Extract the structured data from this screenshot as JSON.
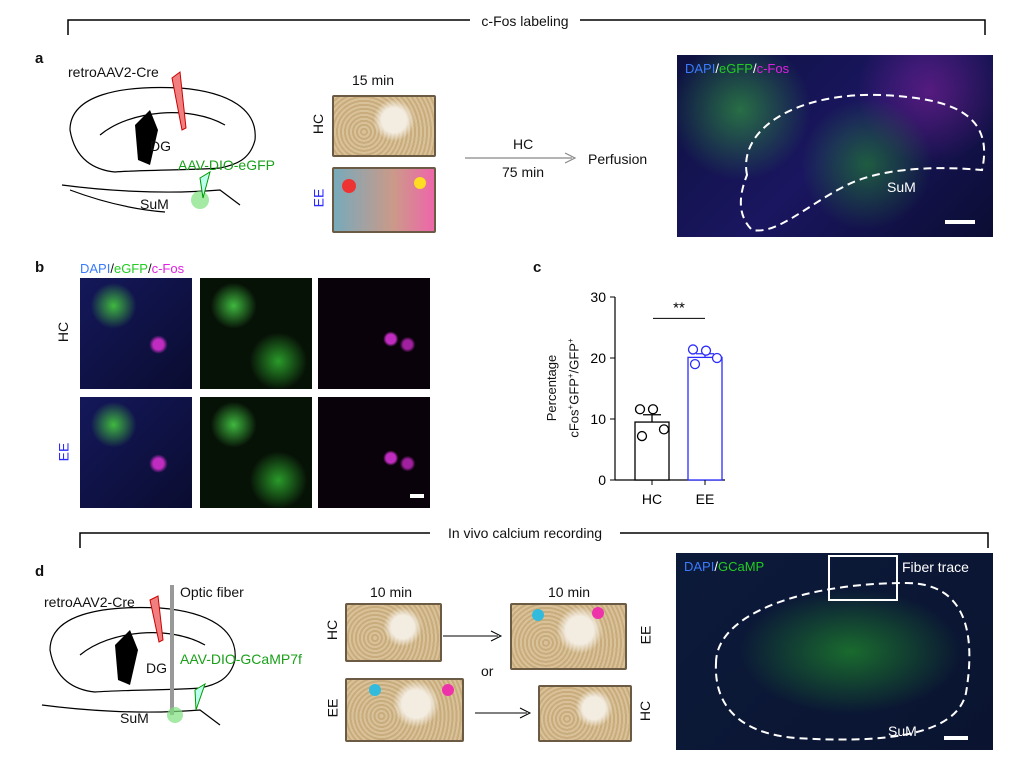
{
  "top_section": {
    "title": "c-Fos labeling"
  },
  "panel_a": {
    "label": "a",
    "virus1": "retroAAV2-Cre",
    "region_dg": "DG",
    "virus2": "AAV-DIO-eGFP",
    "region_sum": "SuM",
    "time": "15 min",
    "cage_hc": "HC",
    "cage_ee": "EE",
    "arrow_top": "HC",
    "arrow_bottom": "75 min",
    "endpoint": "Perfusion",
    "stain": {
      "dapi": "DAPI",
      "sep1": "/",
      "egfp": "eGFP",
      "sep2": "/",
      "cfos": "c-Fos"
    },
    "image_region": "SuM"
  },
  "panel_b": {
    "label": "b",
    "stain": {
      "dapi": "DAPI",
      "sep1": "/",
      "egfp": "eGFP",
      "sep2": "/",
      "cfos": "c-Fos"
    },
    "row_hc": "HC",
    "row_ee": "EE"
  },
  "panel_c": {
    "label": "c"
  },
  "chart_data": {
    "type": "bar",
    "categories": [
      "HC",
      "EE"
    ],
    "values": [
      9.5,
      20.1
    ],
    "errors": [
      1.2,
      0.6
    ],
    "points": [
      [
        11.6,
        11.6,
        7.2,
        8.3
      ],
      [
        21.4,
        21.2,
        19.0,
        20.0
      ]
    ],
    "ylabel_line1": "Percentage",
    "ylabel_line2": "cFos+GFP+/GFP+",
    "ylim": [
      0,
      30
    ],
    "yticks": [
      0,
      10,
      20,
      30
    ],
    "significance": "**",
    "colors": {
      "HC": "#000000",
      "EE": "#2b2bff"
    }
  },
  "bottom_section": {
    "title": "In vivo calcium recording"
  },
  "panel_d": {
    "label": "d",
    "virus1": "retroAAV2-Cre",
    "fiber": "Optic fiber",
    "region_dg": "DG",
    "virus2": "AAV-DIO-GCaMP7f",
    "region_sum": "SuM",
    "time1": "10 min",
    "time2": "10 min",
    "cage_hc1": "HC",
    "cage_ee1": "EE",
    "or": "or",
    "cage_ee2": "EE",
    "cage_hc2": "HC",
    "stain": {
      "dapi": "DAPI",
      "sep": "/",
      "gcamp": "GCaMP"
    },
    "fiber_trace": "Fiber trace",
    "image_region": "SuM"
  },
  "colors": {
    "dapi": "#3a7bff",
    "egfp": "#22cc22",
    "cfos": "#e020e0",
    "ee_label": "#2b2bff",
    "virus_green": "#1aa01a"
  }
}
